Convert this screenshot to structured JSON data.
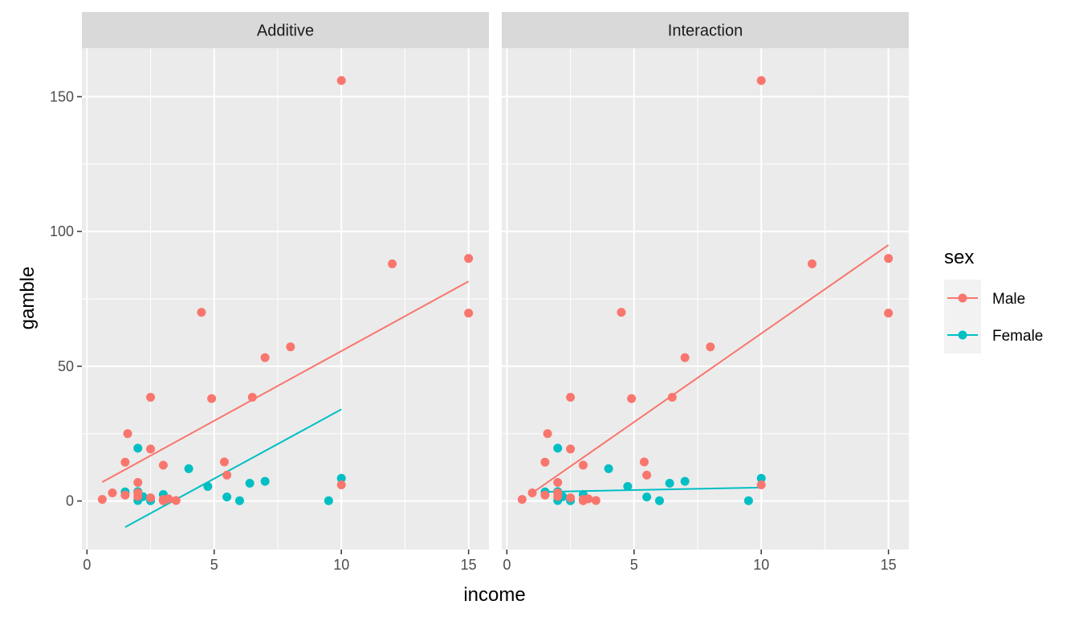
{
  "chart_data": {
    "type": "scatter",
    "xlabel": "income",
    "ylabel": "gamble",
    "xlim": [
      -0.2,
      15.8
    ],
    "ylim": [
      -18,
      168
    ],
    "x_ticks": [
      0,
      5,
      10,
      15
    ],
    "x_tick_labels": [
      "0",
      "5",
      "10",
      "15"
    ],
    "y_ticks": [
      0,
      50,
      100,
      150
    ],
    "y_tick_labels": [
      "0",
      "50",
      "100",
      "150"
    ],
    "legend": {
      "title": "sex",
      "position": "right",
      "entries": [
        {
          "key": "male",
          "label": "Male",
          "color": "#F8766D"
        },
        {
          "key": "female",
          "label": "Female",
          "color": "#00BFC4"
        }
      ]
    },
    "points": {
      "male": [
        [
          0.6,
          0.6
        ],
        [
          1.0,
          3.0
        ],
        [
          1.5,
          2.2
        ],
        [
          1.5,
          14.4
        ],
        [
          1.6,
          25.0
        ],
        [
          2.0,
          6.9
        ],
        [
          2.0,
          3.0
        ],
        [
          2.0,
          1.7
        ],
        [
          2.5,
          38.5
        ],
        [
          2.5,
          19.3
        ],
        [
          2.5,
          1.2
        ],
        [
          3.0,
          13.3
        ],
        [
          3.0,
          0.6
        ],
        [
          3.0,
          0.1
        ],
        [
          3.2,
          0.8
        ],
        [
          3.5,
          0.2
        ],
        [
          4.5,
          70.0
        ],
        [
          4.9,
          38.0
        ],
        [
          5.4,
          14.5
        ],
        [
          5.5,
          9.6
        ],
        [
          6.5,
          38.5
        ],
        [
          7.0,
          53.2
        ],
        [
          8.0,
          57.2
        ],
        [
          10.0,
          156.0
        ],
        [
          10.0,
          6.0
        ],
        [
          12.0,
          88.0
        ],
        [
          15.0,
          90.0
        ],
        [
          15.0,
          69.7
        ]
      ],
      "female": [
        [
          1.5,
          3.4
        ],
        [
          2.0,
          19.6
        ],
        [
          2.0,
          3.5
        ],
        [
          2.0,
          0.2
        ],
        [
          2.2,
          1.6
        ],
        [
          2.5,
          0.1
        ],
        [
          3.0,
          2.4
        ],
        [
          3.0,
          0.4
        ],
        [
          4.0,
          12.0
        ],
        [
          4.75,
          5.4
        ],
        [
          5.5,
          1.5
        ],
        [
          6.0,
          0.1
        ],
        [
          6.4,
          6.6
        ],
        [
          7.0,
          7.3
        ],
        [
          9.5,
          0.1
        ],
        [
          10.0,
          8.4
        ]
      ]
    },
    "panels": [
      {
        "title": "Additive",
        "fits": {
          "male": {
            "x": [
              0.6,
              15.0
            ],
            "y": [
              7.0,
              81.5
            ]
          },
          "female": {
            "x": [
              1.5,
              10.0
            ],
            "y": [
              -9.7,
              34.0
            ]
          }
        }
      },
      {
        "title": "Interaction",
        "fits": {
          "male": {
            "x": [
              1.0,
              15.0
            ],
            "y": [
              3.0,
              95.0
            ]
          },
          "female": {
            "x": [
              1.5,
              10.0
            ],
            "y": [
              3.4,
              5.0
            ]
          }
        }
      }
    ]
  }
}
